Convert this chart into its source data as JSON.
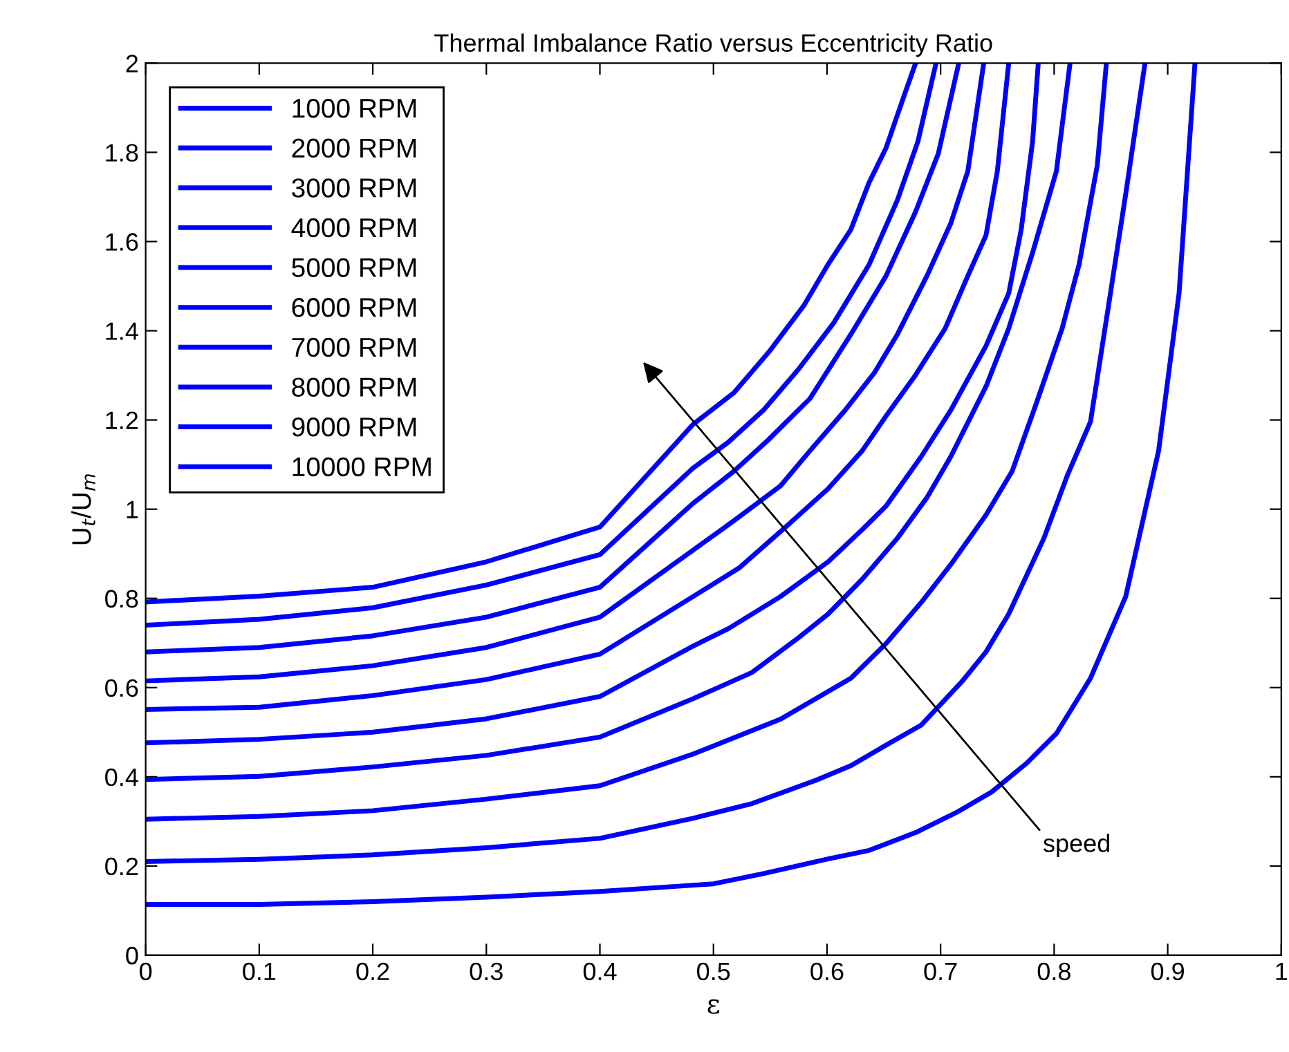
{
  "chart_data": {
    "type": "line",
    "title": "Thermal Imbalance Ratio versus Eccentricity Ratio",
    "xlabel": "ε",
    "ylabel": "U$_{t}$/U$_{m}$",
    "xlim": [
      0,
      1
    ],
    "ylim": [
      0,
      2
    ],
    "xticks": [
      0,
      0.1,
      0.2,
      0.3,
      0.4,
      0.5,
      0.6,
      0.7,
      0.8,
      0.9,
      1
    ],
    "yticks": [
      0,
      0.2,
      0.4,
      0.6,
      0.8,
      1,
      1.2,
      1.4,
      1.6,
      1.8,
      2
    ],
    "grid": false,
    "legend": "top left",
    "marker": "none",
    "line_style": "solid",
    "annotations": [
      "speed"
    ],
    "series": [
      {
        "name": "1000 RPM",
        "color": "#0000ff",
        "x": [
          0,
          0.1,
          0.2,
          0.3,
          0.4,
          0.5,
          0.544,
          0.601,
          0.637,
          0.678,
          0.714,
          0.745,
          0.776,
          0.802,
          0.832,
          0.863,
          0.892,
          0.91,
          0.924
        ],
        "values": [
          0.114,
          0.114,
          0.12,
          0.13,
          0.143,
          0.16,
          0.183,
          0.216,
          0.235,
          0.275,
          0.32,
          0.366,
          0.431,
          0.497,
          0.621,
          0.804,
          1.131,
          1.484,
          2.0
        ]
      },
      {
        "name": "2000 RPM",
        "color": "#0000ff",
        "x": [
          0,
          0.1,
          0.2,
          0.3,
          0.4,
          0.482,
          0.534,
          0.59,
          0.621,
          0.652,
          0.683,
          0.719,
          0.74,
          0.76,
          0.791,
          0.812,
          0.832,
          0.848,
          0.863,
          0.88
        ],
        "values": [
          0.21,
          0.215,
          0.225,
          0.241,
          0.262,
          0.307,
          0.34,
          0.392,
          0.425,
          0.471,
          0.516,
          0.614,
          0.68,
          0.765,
          0.935,
          1.078,
          1.196,
          1.458,
          1.706,
          2.0
        ]
      },
      {
        "name": "3000 RPM",
        "color": "#0000ff",
        "x": [
          0,
          0.1,
          0.2,
          0.3,
          0.4,
          0.482,
          0.559,
          0.621,
          0.652,
          0.683,
          0.709,
          0.74,
          0.763,
          0.784,
          0.807,
          0.822,
          0.838,
          0.846
        ],
        "values": [
          0.305,
          0.311,
          0.324,
          0.35,
          0.38,
          0.451,
          0.529,
          0.621,
          0.699,
          0.791,
          0.876,
          0.987,
          1.085,
          1.235,
          1.405,
          1.549,
          1.771,
          2.0
        ]
      },
      {
        "name": "4000 RPM",
        "color": "#0000ff",
        "x": [
          0,
          0.1,
          0.2,
          0.3,
          0.4,
          0.482,
          0.534,
          0.575,
          0.601,
          0.631,
          0.662,
          0.688,
          0.709,
          0.74,
          0.76,
          0.781,
          0.802,
          0.814
        ],
        "values": [
          0.394,
          0.401,
          0.422,
          0.448,
          0.489,
          0.575,
          0.634,
          0.712,
          0.765,
          0.843,
          0.935,
          1.026,
          1.118,
          1.275,
          1.405,
          1.575,
          1.758,
          2.0
        ]
      },
      {
        "name": "5000 RPM",
        "color": "#0000ff",
        "x": [
          0,
          0.1,
          0.2,
          0.3,
          0.4,
          0.482,
          0.513,
          0.559,
          0.601,
          0.631,
          0.652,
          0.683,
          0.709,
          0.74,
          0.76,
          0.771,
          0.781,
          0.786
        ],
        "values": [
          0.476,
          0.484,
          0.5,
          0.53,
          0.58,
          0.693,
          0.732,
          0.804,
          0.882,
          0.954,
          1.007,
          1.118,
          1.222,
          1.366,
          1.484,
          1.627,
          1.824,
          2.0
        ]
      },
      {
        "name": "6000 RPM",
        "color": "#0000ff",
        "x": [
          0,
          0.1,
          0.2,
          0.3,
          0.4,
          0.482,
          0.523,
          0.564,
          0.601,
          0.631,
          0.652,
          0.678,
          0.704,
          0.724,
          0.74,
          0.75,
          0.76
        ],
        "values": [
          0.551,
          0.556,
          0.582,
          0.618,
          0.675,
          0.804,
          0.869,
          0.961,
          1.046,
          1.131,
          1.209,
          1.301,
          1.405,
          1.523,
          1.614,
          1.758,
          2.0
        ]
      },
      {
        "name": "7000 RPM",
        "color": "#0000ff",
        "x": [
          0,
          0.1,
          0.2,
          0.3,
          0.4,
          0.482,
          0.518,
          0.559,
          0.585,
          0.616,
          0.642,
          0.662,
          0.688,
          0.709,
          0.724,
          0.738
        ],
        "values": [
          0.615,
          0.624,
          0.649,
          0.69,
          0.758,
          0.908,
          0.974,
          1.052,
          1.131,
          1.222,
          1.307,
          1.392,
          1.523,
          1.641,
          1.758,
          2.0
        ]
      },
      {
        "name": "8000 RPM",
        "color": "#0000ff",
        "x": [
          0,
          0.1,
          0.2,
          0.3,
          0.4,
          0.482,
          0.518,
          0.549,
          0.585,
          0.621,
          0.652,
          0.678,
          0.698,
          0.716
        ],
        "values": [
          0.68,
          0.69,
          0.716,
          0.758,
          0.825,
          1.013,
          1.085,
          1.157,
          1.248,
          1.392,
          1.523,
          1.667,
          1.797,
          2.0
        ]
      },
      {
        "name": "9000 RPM",
        "color": "#0000ff",
        "x": [
          0,
          0.1,
          0.2,
          0.3,
          0.4,
          0.482,
          0.513,
          0.544,
          0.575,
          0.606,
          0.637,
          0.662,
          0.68,
          0.696
        ],
        "values": [
          0.74,
          0.753,
          0.779,
          0.83,
          0.898,
          1.092,
          1.15,
          1.222,
          1.314,
          1.418,
          1.548,
          1.693,
          1.824,
          2.0
        ]
      },
      {
        "name": "10000 RPM",
        "color": "#0000ff",
        "x": [
          0,
          0.1,
          0.2,
          0.3,
          0.4,
          0.482,
          0.518,
          0.549,
          0.58,
          0.601,
          0.621,
          0.637,
          0.652,
          0.668,
          0.678
        ],
        "values": [
          0.792,
          0.805,
          0.825,
          0.882,
          0.96,
          1.19,
          1.261,
          1.353,
          1.458,
          1.549,
          1.627,
          1.732,
          1.81,
          1.928,
          2.0
        ]
      }
    ]
  }
}
